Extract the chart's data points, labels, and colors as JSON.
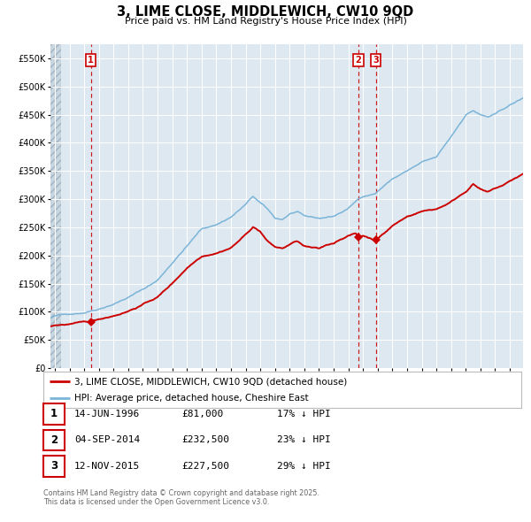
{
  "title": "3, LIME CLOSE, MIDDLEWICH, CW10 9QD",
  "subtitle": "Price paid vs. HM Land Registry's House Price Index (HPI)",
  "legend_line1": "3, LIME CLOSE, MIDDLEWICH, CW10 9QD (detached house)",
  "legend_line2": "HPI: Average price, detached house, Cheshire East",
  "footnote1": "Contains HM Land Registry data © Crown copyright and database right 2025.",
  "footnote2": "This data is licensed under the Open Government Licence v3.0.",
  "transactions": [
    {
      "label": "1",
      "date": "14-JUN-1996",
      "price": 81000,
      "pct": "17% ↓ HPI"
    },
    {
      "label": "2",
      "date": "04-SEP-2014",
      "price": 232500,
      "pct": "23% ↓ HPI"
    },
    {
      "label": "3",
      "date": "12-NOV-2015",
      "price": 227500,
      "pct": "29% ↓ HPI"
    }
  ],
  "transaction_dates_decimal": [
    1996.45,
    2014.67,
    2015.87
  ],
  "transaction_prices": [
    81000,
    232500,
    227500
  ],
  "hpi_color": "#7ab4d8",
  "price_color": "#cc0000",
  "background_plot": "#dde8f0",
  "background_fig": "#ffffff",
  "grid_color": "#ffffff",
  "ylim": [
    0,
    575000
  ],
  "xlim_start": 1993.7,
  "xlim_end": 2025.9,
  "yticks": [
    0,
    50000,
    100000,
    150000,
    200000,
    250000,
    300000,
    350000,
    400000,
    450000,
    500000,
    550000
  ],
  "xticks": [
    1994,
    1995,
    1996,
    1997,
    1998,
    1999,
    2000,
    2001,
    2002,
    2003,
    2004,
    2005,
    2006,
    2007,
    2008,
    2009,
    2010,
    2011,
    2012,
    2013,
    2014,
    2015,
    2016,
    2017,
    2018,
    2019,
    2020,
    2021,
    2022,
    2023,
    2024,
    2025
  ]
}
